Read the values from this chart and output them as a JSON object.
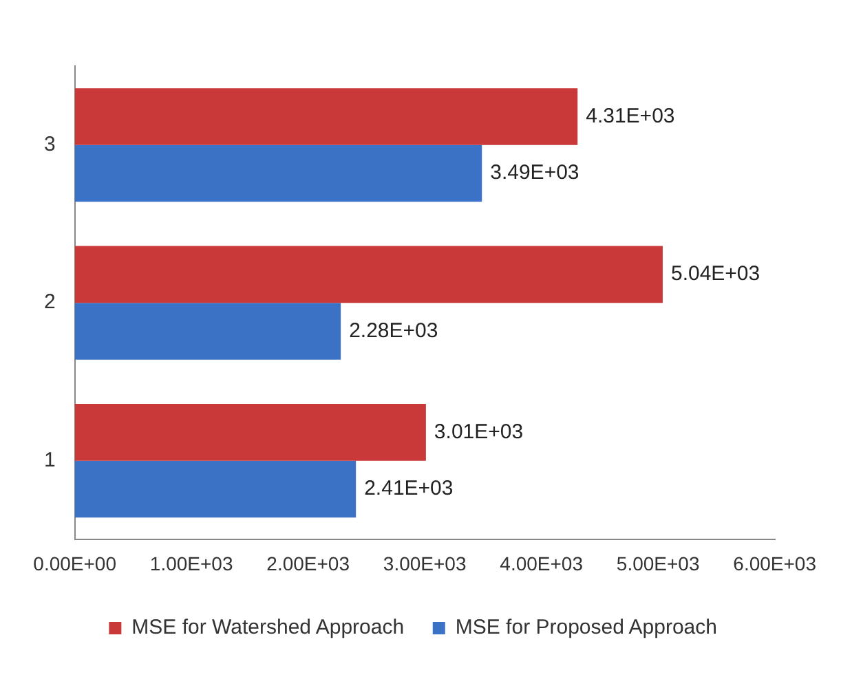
{
  "chart_data": {
    "type": "bar",
    "orientation": "horizontal",
    "categories": [
      "3",
      "2",
      "1"
    ],
    "series": [
      {
        "name": "MSE for Watershed Approach",
        "color": "#c9393a",
        "values": [
          4310,
          5040,
          3010
        ],
        "value_labels": [
          "4.31E+03",
          "5.04E+03",
          "3.01E+03"
        ]
      },
      {
        "name": "MSE for Proposed Approach",
        "color": "#3b72c6",
        "values": [
          3490,
          2280,
          2410
        ],
        "value_labels": [
          "3.49E+03",
          "2.28E+03",
          "2.41E+03"
        ]
      }
    ],
    "xlim": [
      0,
      6000
    ],
    "xticks": [
      {
        "value": 0,
        "label": "0.00E+00"
      },
      {
        "value": 1000,
        "label": "1.00E+03"
      },
      {
        "value": 2000,
        "label": "2.00E+03"
      },
      {
        "value": 3000,
        "label": "3.00E+03"
      },
      {
        "value": 4000,
        "label": "4.00E+03"
      },
      {
        "value": 5000,
        "label": "5.00E+03"
      },
      {
        "value": 6000,
        "label": "6.00E+03"
      }
    ],
    "grid": false,
    "legend": "bottom"
  }
}
